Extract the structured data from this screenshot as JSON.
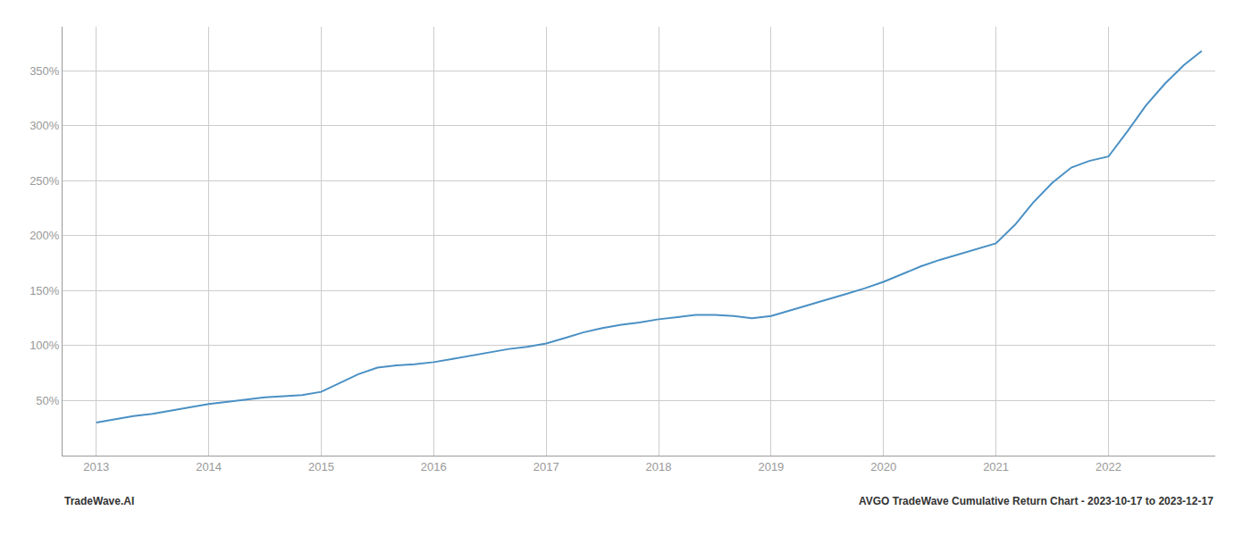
{
  "chart_data": {
    "type": "line",
    "x": [
      2013.0,
      2013.17,
      2013.33,
      2013.5,
      2013.67,
      2013.83,
      2014.0,
      2014.17,
      2014.33,
      2014.5,
      2014.67,
      2014.83,
      2015.0,
      2015.17,
      2015.33,
      2015.5,
      2015.67,
      2015.83,
      2016.0,
      2016.17,
      2016.33,
      2016.5,
      2016.67,
      2016.83,
      2017.0,
      2017.17,
      2017.33,
      2017.5,
      2017.67,
      2017.83,
      2018.0,
      2018.17,
      2018.33,
      2018.5,
      2018.67,
      2018.83,
      2019.0,
      2019.17,
      2019.33,
      2019.5,
      2019.67,
      2019.83,
      2020.0,
      2020.17,
      2020.33,
      2020.5,
      2020.67,
      2020.83,
      2021.0,
      2021.17,
      2021.33,
      2021.5,
      2021.67,
      2021.83,
      2022.0,
      2022.17,
      2022.33,
      2022.5,
      2022.67,
      2022.83
    ],
    "values": [
      30,
      33,
      36,
      38,
      41,
      44,
      47,
      49,
      51,
      53,
      54,
      55,
      58,
      66,
      74,
      80,
      82,
      83,
      85,
      88,
      91,
      94,
      97,
      99,
      102,
      107,
      112,
      116,
      119,
      121,
      124,
      126,
      128,
      128,
      127,
      125,
      127,
      132,
      137,
      142,
      147,
      152,
      158,
      165,
      172,
      178,
      183,
      188,
      193,
      210,
      230,
      248,
      262,
      268,
      272,
      295,
      318,
      338,
      355,
      368
    ],
    "color": "#4a90c4",
    "xlim": [
      2012.7,
      2022.95
    ],
    "xticks": [
      2013,
      2014,
      2015,
      2016,
      2017,
      2018,
      2019,
      2020,
      2021,
      2022
    ],
    "ylim": [
      0,
      390
    ],
    "yticks": [
      {
        "value": 50,
        "label": "50%"
      },
      {
        "value": 100,
        "label": "100%"
      },
      {
        "value": 150,
        "label": "150%"
      },
      {
        "value": 200,
        "label": "200%"
      },
      {
        "value": 250,
        "label": "250%"
      },
      {
        "value": 300,
        "label": "300%"
      },
      {
        "value": 350,
        "label": "350%"
      }
    ],
    "grid": true,
    "annotations": [
      "TradeWave.AI",
      "AVGO TradeWave Cumulative Return Chart - 2023-10-17 to 2023-12-17"
    ]
  }
}
